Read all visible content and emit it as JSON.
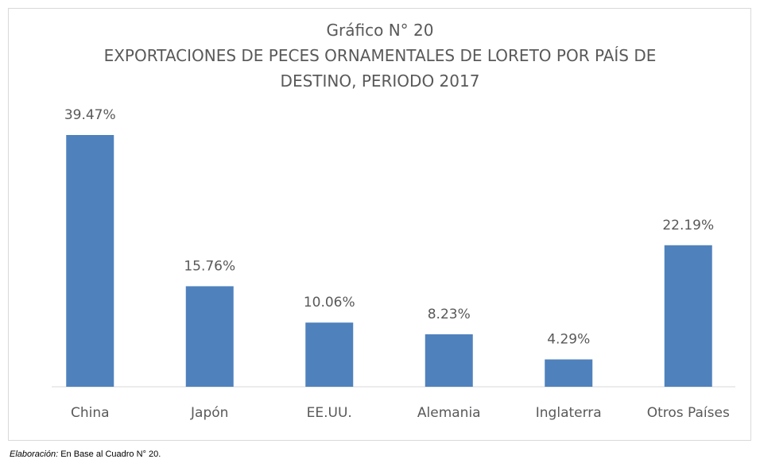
{
  "chart_data": {
    "type": "bar",
    "title": "Gráfico N° 20",
    "subtitle": "EXPORTACIONES DE PECES ORNAMENTALES DE LORETO POR PAÍS DE DESTINO, PERIODO 2017",
    "categories": [
      "China",
      "Japón",
      "EE.UU.",
      "Alemania",
      "Inglaterra",
      "Otros Países"
    ],
    "values": [
      39.47,
      15.76,
      10.06,
      8.23,
      4.29,
      22.19
    ],
    "value_labels": [
      "39.47%",
      "15.76%",
      "10.06%",
      "8.23%",
      "4.29%",
      "22.19%"
    ],
    "color": "#4f81bd",
    "grid": false,
    "note": {
      "label": "Elaboración:",
      "text": "En Base al Cuadro N° 20."
    }
  }
}
